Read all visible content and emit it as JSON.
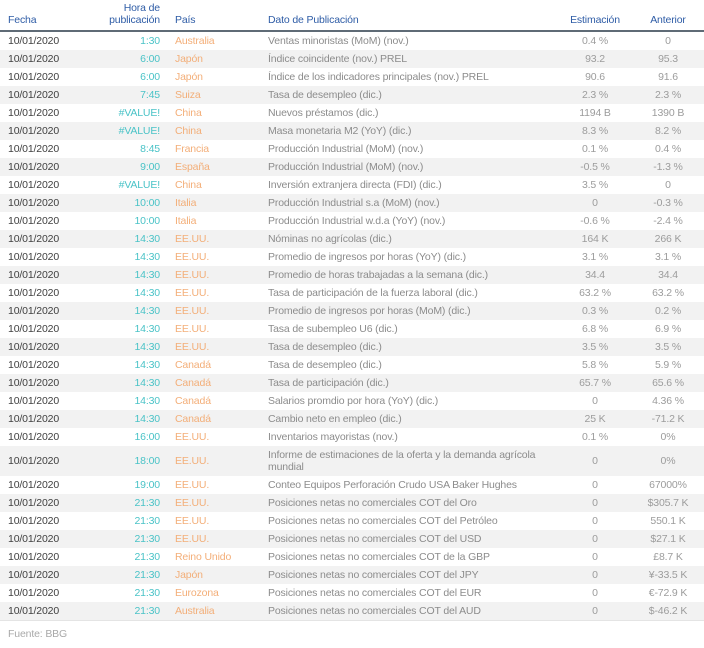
{
  "header": {
    "columns": [
      "Fecha",
      "Hora de publicación",
      "País",
      "Dato de Publicación",
      "Estimación",
      "Anterior"
    ]
  },
  "rows": [
    {
      "date": "10/01/2020",
      "time": "1:30",
      "country": "Australia",
      "event": "Ventas minoristas (MoM) (nov.)",
      "estimate": "0.4 %",
      "previous": "0"
    },
    {
      "date": "10/01/2020",
      "time": "6:00",
      "country": "Japón",
      "event": "Índice coincidente (nov.) PREL",
      "estimate": "93.2",
      "previous": "95.3"
    },
    {
      "date": "10/01/2020",
      "time": "6:00",
      "country": "Japón",
      "event": "Índice de los indicadores principales (nov.) PREL",
      "estimate": "90.6",
      "previous": "91.6"
    },
    {
      "date": "10/01/2020",
      "time": "7:45",
      "country": "Suiza",
      "event": "Tasa de desempleo (dic.)",
      "estimate": "2.3 %",
      "previous": "2.3 %"
    },
    {
      "date": "10/01/2020",
      "time": "#VALUE!",
      "country": "China",
      "event": "Nuevos préstamos (dic.)",
      "estimate": "1194 B",
      "previous": "1390 B"
    },
    {
      "date": "10/01/2020",
      "time": "#VALUE!",
      "country": "China",
      "event": "Masa monetaria M2 (YoY) (dic.)",
      "estimate": "8.3 %",
      "previous": "8.2 %"
    },
    {
      "date": "10/01/2020",
      "time": "8:45",
      "country": "Francia",
      "event": "Producción Industrial (MoM) (nov.)",
      "estimate": "0.1 %",
      "previous": "0.4 %"
    },
    {
      "date": "10/01/2020",
      "time": "9:00",
      "country": "España",
      "event": "Producción Industrial (MoM) (nov.)",
      "estimate": "-0.5 %",
      "previous": "-1.3 %"
    },
    {
      "date": "10/01/2020",
      "time": "#VALUE!",
      "country": "China",
      "event": "Inversión extranjera directa (FDI) (dic.)",
      "estimate": "3.5 %",
      "previous": "0"
    },
    {
      "date": "10/01/2020",
      "time": "10:00",
      "country": "Italia",
      "event": "Producción Industrial s.a (MoM) (nov.)",
      "estimate": "0",
      "previous": "-0.3 %"
    },
    {
      "date": "10/01/2020",
      "time": "10:00",
      "country": "Italia",
      "event": "Producción Industrial w.d.a (YoY) (nov.)",
      "estimate": "-0.6 %",
      "previous": "-2.4 %"
    },
    {
      "date": "10/01/2020",
      "time": "14:30",
      "country": "EE.UU.",
      "event": "Nóminas no agrícolas (dic.)",
      "estimate": "164 K",
      "previous": "266 K"
    },
    {
      "date": "10/01/2020",
      "time": "14:30",
      "country": "EE.UU.",
      "event": "Promedio de ingresos por horas (YoY) (dic.)",
      "estimate": "3.1 %",
      "previous": "3.1 %"
    },
    {
      "date": "10/01/2020",
      "time": "14:30",
      "country": "EE.UU.",
      "event": "Promedio de horas trabajadas a la semana (dic.)",
      "estimate": "34.4",
      "previous": "34.4"
    },
    {
      "date": "10/01/2020",
      "time": "14:30",
      "country": "EE.UU.",
      "event": "Tasa de participación de la fuerza laboral (dic.)",
      "estimate": "63.2 %",
      "previous": "63.2 %"
    },
    {
      "date": "10/01/2020",
      "time": "14:30",
      "country": "EE.UU.",
      "event": "Promedio de ingresos por horas (MoM) (dic.)",
      "estimate": "0.3 %",
      "previous": "0.2 %"
    },
    {
      "date": "10/01/2020",
      "time": "14:30",
      "country": "EE.UU.",
      "event": "Tasa de subempleo U6 (dic.)",
      "estimate": "6.8 %",
      "previous": "6.9 %"
    },
    {
      "date": "10/01/2020",
      "time": "14:30",
      "country": "EE.UU.",
      "event": "Tasa de desempleo (dic.)",
      "estimate": "3.5 %",
      "previous": "3.5 %"
    },
    {
      "date": "10/01/2020",
      "time": "14:30",
      "country": "Canadá",
      "event": "Tasa de desempleo (dic.)",
      "estimate": "5.8 %",
      "previous": "5.9 %"
    },
    {
      "date": "10/01/2020",
      "time": "14:30",
      "country": "Canadá",
      "event": "Tasa de participación (dic.)",
      "estimate": "65.7 %",
      "previous": "65.6 %"
    },
    {
      "date": "10/01/2020",
      "time": "14:30",
      "country": "Canadá",
      "event": "Salarios promdio por hora (YoY) (dic.)",
      "estimate": "0",
      "previous": "4.36 %"
    },
    {
      "date": "10/01/2020",
      "time": "14:30",
      "country": "Canadá",
      "event": "Cambio neto en empleo (dic.)",
      "estimate": "25 K",
      "previous": "-71.2 K"
    },
    {
      "date": "10/01/2020",
      "time": "16:00",
      "country": "EE.UU.",
      "event": "Inventarios mayoristas (nov.)",
      "estimate": "0.1 %",
      "previous": "0%"
    },
    {
      "date": "10/01/2020",
      "time": "18:00",
      "country": "EE.UU.",
      "event": "Informe de estimaciones de la oferta y la demanda agrícola mundial",
      "estimate": "0",
      "previous": "0%"
    },
    {
      "date": "10/01/2020",
      "time": "19:00",
      "country": "EE.UU.",
      "event": "Conteo Equipos Perforación Crudo USA Baker Hughes",
      "estimate": "0",
      "previous": "67000%"
    },
    {
      "date": "10/01/2020",
      "time": "21:30",
      "country": "EE.UU.",
      "event": "Posiciones netas no comerciales COT del Oro",
      "estimate": "0",
      "previous": "$305.7 K"
    },
    {
      "date": "10/01/2020",
      "time": "21:30",
      "country": "EE.UU.",
      "event": "Posiciones netas no comerciales COT del Petróleo",
      "estimate": "0",
      "previous": "550.1 K"
    },
    {
      "date": "10/01/2020",
      "time": "21:30",
      "country": "EE.UU.",
      "event": "Posiciones netas no comerciales COT del USD",
      "estimate": "0",
      "previous": "$27.1 K"
    },
    {
      "date": "10/01/2020",
      "time": "21:30",
      "country": "Reino Unido",
      "event": "Posiciones netas no comerciales COT de la GBP",
      "estimate": "0",
      "previous": "£8.7 K"
    },
    {
      "date": "10/01/2020",
      "time": "21:30",
      "country": "Japón",
      "event": "Posiciones netas no comerciales COT del JPY",
      "estimate": "0",
      "previous": "¥-33.5 K"
    },
    {
      "date": "10/01/2020",
      "time": "21:30",
      "country": "Eurozona",
      "event": "Posiciones netas no comerciales COT del EUR",
      "estimate": "0",
      "previous": "€-72.9 K"
    },
    {
      "date": "10/01/2020",
      "time": "21:30",
      "country": "Australia",
      "event": "Posiciones netas no comerciales COT del AUD",
      "estimate": "0",
      "previous": "$-46.2 K"
    }
  ],
  "source": "Fuente: BBG",
  "colors": {
    "header_text": "#2e5ca6",
    "header_rule": "#5f6b76",
    "time": "#4ac3c7",
    "country": "#f3ae78",
    "date": "#404040",
    "event": "#8c8c8c",
    "value": "#9c9c9c",
    "stripe": "#f2f2f2",
    "source": "#a9a9a9"
  }
}
